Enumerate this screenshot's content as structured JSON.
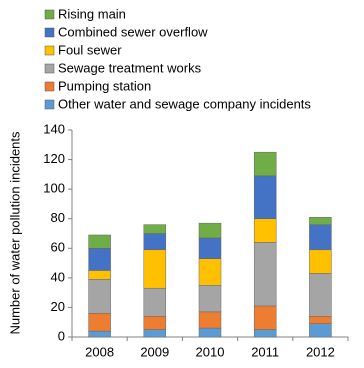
{
  "chart_data": {
    "type": "stacked_bar",
    "y_label": "Number of water pollution incidents",
    "categories": [
      "2008",
      "2009",
      "2010",
      "2011",
      "2012"
    ],
    "series": [
      {
        "name": "Other water and sewage company incidents",
        "color": "#5b9bd5",
        "values": [
          4,
          5,
          6,
          5,
          9
        ]
      },
      {
        "name": "Pumping station",
        "color": "#ed7d31",
        "values": [
          12,
          9,
          11,
          16,
          5
        ]
      },
      {
        "name": "Sewage treatment works",
        "color": "#a5a5a5",
        "values": [
          23,
          19,
          18,
          43,
          29
        ]
      },
      {
        "name": "Foul sewer",
        "color": "#ffc000",
        "values": [
          6,
          26,
          18,
          16,
          16
        ]
      },
      {
        "name": "Combined sewer overflow",
        "color": "#4472c4",
        "values": [
          15,
          11,
          14,
          29,
          17
        ]
      },
      {
        "name": "Rising main",
        "color": "#70ad47",
        "values": [
          9,
          6,
          10,
          16,
          5
        ]
      }
    ],
    "ylim": [
      0,
      140
    ],
    "yticks": [
      0,
      20,
      40,
      60,
      80,
      100,
      120,
      140
    ],
    "grid": false
  }
}
